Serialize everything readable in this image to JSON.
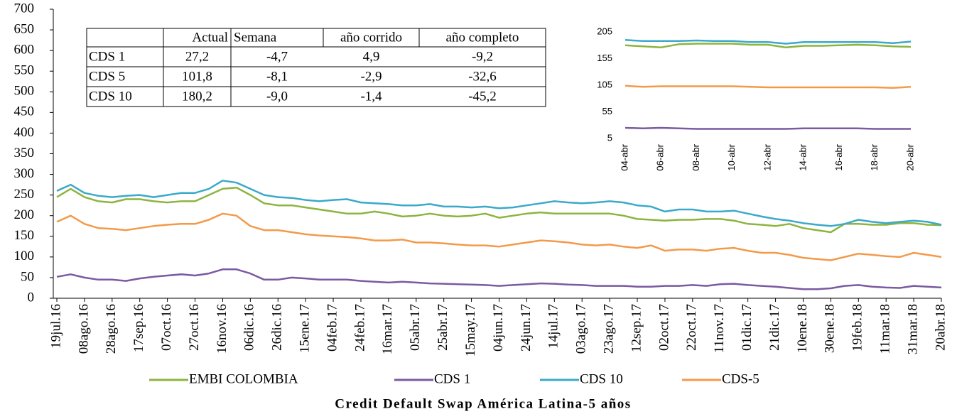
{
  "chart_data": [
    {
      "type": "line",
      "caption": "Credit Default Swap América Latina-5 años",
      "categories": [
        "19jul.16",
        null,
        "08ago.16",
        null,
        "28ago.16",
        null,
        "17sep.16",
        null,
        "07oct.16",
        null,
        "27oct.16",
        null,
        "16nov.16",
        null,
        "06dic.16",
        null,
        "26dic.16",
        null,
        "15ene.17",
        null,
        "04feb.17",
        null,
        "24feb.17",
        null,
        "16mar.17",
        null,
        "05abr.17",
        null,
        "25abr.17",
        null,
        "15may.17",
        null,
        "04jun.17",
        null,
        "24jun.17",
        null,
        "14jul.17",
        null,
        "03ago.17",
        null,
        "23ago.17",
        null,
        "12sep.17",
        null,
        "02oct.17",
        null,
        "22oct.17",
        null,
        "11nov.17",
        null,
        "01dic.17",
        null,
        "21dic.17",
        null,
        "10ene.18",
        null,
        "30ene.18",
        null,
        "19feb.18",
        null,
        "11mar.18",
        null,
        "31mar.18",
        null,
        "20abr.18"
      ],
      "series": [
        {
          "name": "EMBI COLOMBIA",
          "color": "#8db43f",
          "values": [
            245,
            265,
            245,
            235,
            232,
            240,
            240,
            235,
            232,
            235,
            235,
            250,
            265,
            268,
            250,
            230,
            225,
            225,
            220,
            215,
            210,
            205,
            205,
            210,
            205,
            198,
            200,
            205,
            200,
            198,
            200,
            205,
            195,
            200,
            205,
            208,
            205,
            205,
            205,
            205,
            205,
            200,
            192,
            190,
            188,
            190,
            190,
            192,
            192,
            188,
            180,
            178,
            175,
            180,
            170,
            165,
            160,
            180,
            180,
            178,
            178,
            182,
            182,
            178,
            177
          ]
        },
        {
          "name": "CDS 1",
          "color": "#7a5aa0",
          "values": [
            52,
            58,
            50,
            45,
            45,
            42,
            48,
            52,
            55,
            58,
            55,
            60,
            70,
            70,
            60,
            45,
            45,
            50,
            48,
            45,
            45,
            45,
            42,
            40,
            38,
            40,
            38,
            36,
            35,
            34,
            33,
            32,
            30,
            32,
            34,
            36,
            35,
            33,
            32,
            30,
            30,
            30,
            28,
            28,
            30,
            30,
            32,
            30,
            34,
            35,
            32,
            30,
            28,
            25,
            22,
            22,
            24,
            30,
            32,
            28,
            26,
            25,
            30,
            28,
            26
          ]
        },
        {
          "name": "CDS 10",
          "color": "#3ba9c9",
          "values": [
            260,
            275,
            255,
            248,
            245,
            248,
            250,
            245,
            250,
            255,
            255,
            265,
            285,
            280,
            265,
            250,
            245,
            243,
            238,
            235,
            238,
            240,
            232,
            230,
            228,
            225,
            225,
            228,
            222,
            222,
            220,
            222,
            218,
            220,
            225,
            230,
            235,
            232,
            230,
            232,
            235,
            232,
            225,
            222,
            210,
            215,
            215,
            210,
            210,
            212,
            205,
            198,
            192,
            188,
            182,
            178,
            175,
            180,
            190,
            185,
            182,
            185,
            188,
            185,
            178
          ]
        },
        {
          "name": "CDS-5",
          "color": "#f39a4a",
          "values": [
            185,
            200,
            180,
            170,
            168,
            165,
            170,
            175,
            178,
            180,
            180,
            190,
            205,
            200,
            175,
            165,
            165,
            160,
            155,
            152,
            150,
            148,
            145,
            140,
            140,
            142,
            135,
            135,
            133,
            130,
            128,
            128,
            125,
            130,
            135,
            140,
            138,
            135,
            130,
            128,
            130,
            125,
            122,
            128,
            115,
            118,
            118,
            115,
            120,
            122,
            115,
            110,
            110,
            105,
            98,
            95,
            92,
            100,
            108,
            105,
            102,
            100,
            110,
            105,
            100
          ]
        }
      ],
      "ylim": [
        0,
        700
      ],
      "yticks": [
        0,
        50,
        100,
        150,
        200,
        250,
        300,
        350,
        400,
        450,
        500,
        550,
        600,
        650,
        700
      ],
      "table": {
        "header": [
          "Actual",
          "Semana",
          "año corrido",
          "año completo"
        ],
        "rows": [
          [
            "CDS 1",
            "27,2",
            "-4,7",
            "4,9",
            "-9,2"
          ],
          [
            "CDS 5",
            "101,8",
            "-8,1",
            "-2,9",
            "-32,6"
          ],
          [
            "CDS 10",
            "180,2",
            "-9,0",
            "-1,4",
            "-45,2"
          ]
        ]
      }
    },
    {
      "type": "line",
      "categories": [
        "04-abr",
        null,
        "06-abr",
        null,
        "08-abr",
        null,
        "10-abr",
        null,
        "12-abr",
        null,
        "14-abr",
        null,
        "16-abr",
        null,
        "18-abr",
        null,
        "20-abr"
      ],
      "series": [
        {
          "color": "#8db43f",
          "values": [
            180,
            178,
            176,
            182,
            183,
            183,
            183,
            181,
            181,
            176,
            179,
            179,
            180,
            181,
            180,
            178,
            177
          ]
        },
        {
          "color": "#3ba9c9",
          "values": [
            190,
            188,
            188,
            188,
            189,
            188,
            188,
            186,
            186,
            183,
            186,
            186,
            186,
            186,
            186,
            184,
            187
          ]
        },
        {
          "color": "#f39a4a",
          "values": [
            104,
            102,
            103,
            103,
            103,
            103,
            103,
            102,
            101,
            101,
            101,
            101,
            101,
            101,
            101,
            100,
            102
          ]
        },
        {
          "color": "#7a5aa0",
          "values": [
            25,
            24,
            25,
            24,
            23,
            23,
            23,
            23,
            23,
            23,
            24,
            24,
            24,
            24,
            23,
            23,
            23
          ]
        }
      ],
      "ylim": [
        5,
        205
      ],
      "yticks": [
        5,
        55,
        105,
        155,
        205
      ]
    }
  ]
}
